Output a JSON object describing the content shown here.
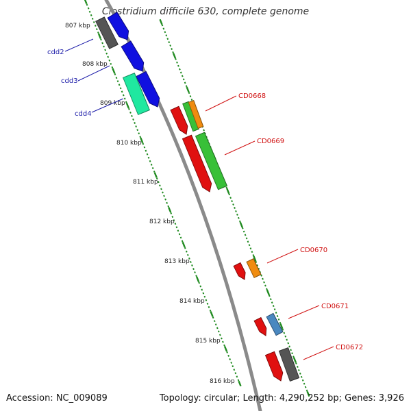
{
  "title": "Clostridium difficile 630, complete genome",
  "accession": "Accession: NC_009089",
  "summary": "Topology: circular; Length: 4,290,252 bp; Genes: 3,926",
  "scale_labels": [
    "807 kbp",
    "808 kbp",
    "809 kbp",
    "810 kbp",
    "811 kbp",
    "812 kbp",
    "813 kbp",
    "814 kbp",
    "815 kbp",
    "816 kbp"
  ],
  "gene_labels_left": [
    "cdd2",
    "cdd3",
    "cdd4"
  ],
  "gene_labels_right": [
    "CD0668",
    "CD0669",
    "CD0670",
    "CD0671",
    "CD0672"
  ],
  "colors": {
    "backbone": "#8a8a8a",
    "ticks": "#1f8a1f",
    "left_label": "#1a1aa8",
    "right_label": "#d01010",
    "blue": "#1010e0",
    "dark_gray": "#555555",
    "teal": "#20e8a0",
    "red": "#e01010",
    "green": "#38c038",
    "orange": "#f08c10",
    "steel_blue": "#4a88c0"
  }
}
